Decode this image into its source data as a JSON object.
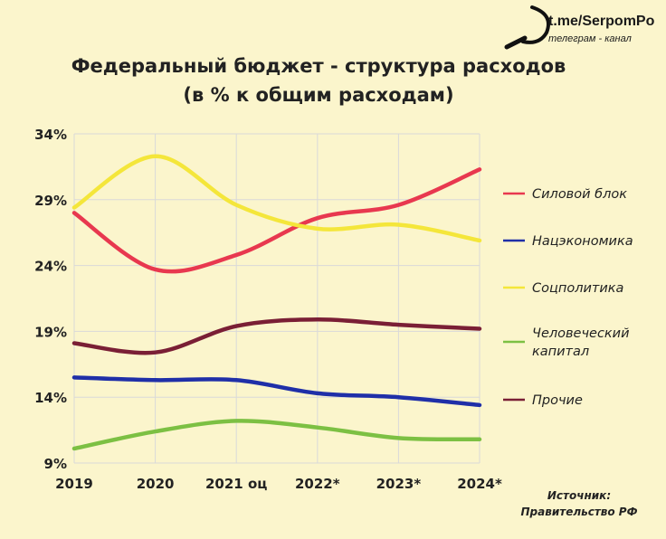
{
  "brand": {
    "url": "t.me/SerpomPo",
    "subtitle": "телеграм - канал",
    "logo_icon": "sickle-icon"
  },
  "source": {
    "line1": "Источник:",
    "line2": "Правительство РФ"
  },
  "colors": {
    "background": "#fbf5cc",
    "grid": "#d9d9d9",
    "silovoy": "#e8384f",
    "natsekonomika": "#1f2fa8",
    "sotspolitika": "#f4e63a",
    "chelovecheskiy": "#7cc043",
    "prochie": "#7a1f35"
  },
  "chart_data": {
    "type": "line",
    "title": "Федеральный бюджет - структура расходов",
    "subtitle": "(в % к общим расходам)",
    "xlabel": "",
    "ylabel": "",
    "categories": [
      "2019",
      "2020",
      "2021 оц",
      "2022*",
      "2023*",
      "2024*"
    ],
    "ylim": [
      9,
      34
    ],
    "yticks": [
      "34%",
      "29%",
      "24%",
      "19%",
      "14%",
      "9%"
    ],
    "ytick_values": [
      34,
      29,
      24,
      19,
      14,
      9
    ],
    "grid": true,
    "legend_position": "right",
    "series": [
      {
        "name": "Силовой блок",
        "color_key": "silovoy",
        "values": [
          28.0,
          23.7,
          24.8,
          27.6,
          28.6,
          31.3
        ]
      },
      {
        "name": "Нацэкономика",
        "color_key": "natsekonomika",
        "values": [
          15.5,
          15.3,
          15.3,
          14.3,
          14.0,
          13.4
        ]
      },
      {
        "name": "Соцполитика",
        "color_key": "sotspolitika",
        "values": [
          28.4,
          32.3,
          28.6,
          26.8,
          27.1,
          25.9
        ]
      },
      {
        "name": "Человеческий капитал",
        "label_lines": [
          "Человеческий",
          "капитал"
        ],
        "color_key": "chelovecheskiy",
        "values": [
          10.1,
          11.4,
          12.2,
          11.7,
          10.9,
          10.8
        ]
      },
      {
        "name": "Прочие",
        "color_key": "prochie",
        "values": [
          18.1,
          17.4,
          19.4,
          19.9,
          19.5,
          19.2
        ]
      }
    ]
  }
}
